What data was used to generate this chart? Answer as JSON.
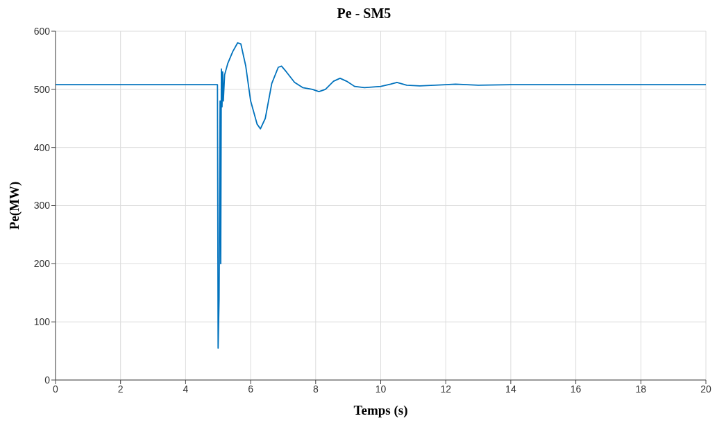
{
  "chart_data": {
    "type": "line",
    "title": "Pe - SM5",
    "xlabel": "Temps (s)",
    "ylabel": "Pe(MW)",
    "xlim": [
      0,
      20
    ],
    "xticks": [
      0,
      2,
      4,
      6,
      8,
      10,
      12,
      14,
      16,
      18,
      20
    ],
    "ylim": [
      0,
      600
    ],
    "yticks": [
      0,
      100,
      200,
      300,
      400,
      500,
      600
    ],
    "grid": true,
    "line_style": "solid",
    "series": [
      {
        "color": "#0072bd",
        "x": [
          0,
          4.98,
          5.0,
          5.03,
          5.06,
          5.08,
          5.1,
          5.12,
          5.14,
          5.16,
          5.2,
          5.3,
          5.45,
          5.6,
          5.7,
          5.85,
          6.0,
          6.2,
          6.3,
          6.45,
          6.65,
          6.85,
          6.95,
          7.1,
          7.35,
          7.6,
          7.9,
          8.1,
          8.3,
          8.55,
          8.75,
          8.95,
          9.2,
          9.5,
          10.0,
          10.3,
          10.5,
          10.8,
          11.2,
          12,
          12.3,
          13,
          14,
          15,
          20
        ],
        "values": [
          508,
          508,
          55,
          140,
          480,
          200,
          535,
          470,
          530,
          480,
          525,
          545,
          565,
          580,
          578,
          540,
          480,
          440,
          432,
          450,
          510,
          538,
          540,
          530,
          512,
          503,
          500,
          496,
          500,
          514,
          519,
          514,
          505,
          503,
          505,
          509,
          512,
          507,
          506,
          508,
          509,
          507,
          508,
          508,
          508
        ]
      }
    ]
  }
}
